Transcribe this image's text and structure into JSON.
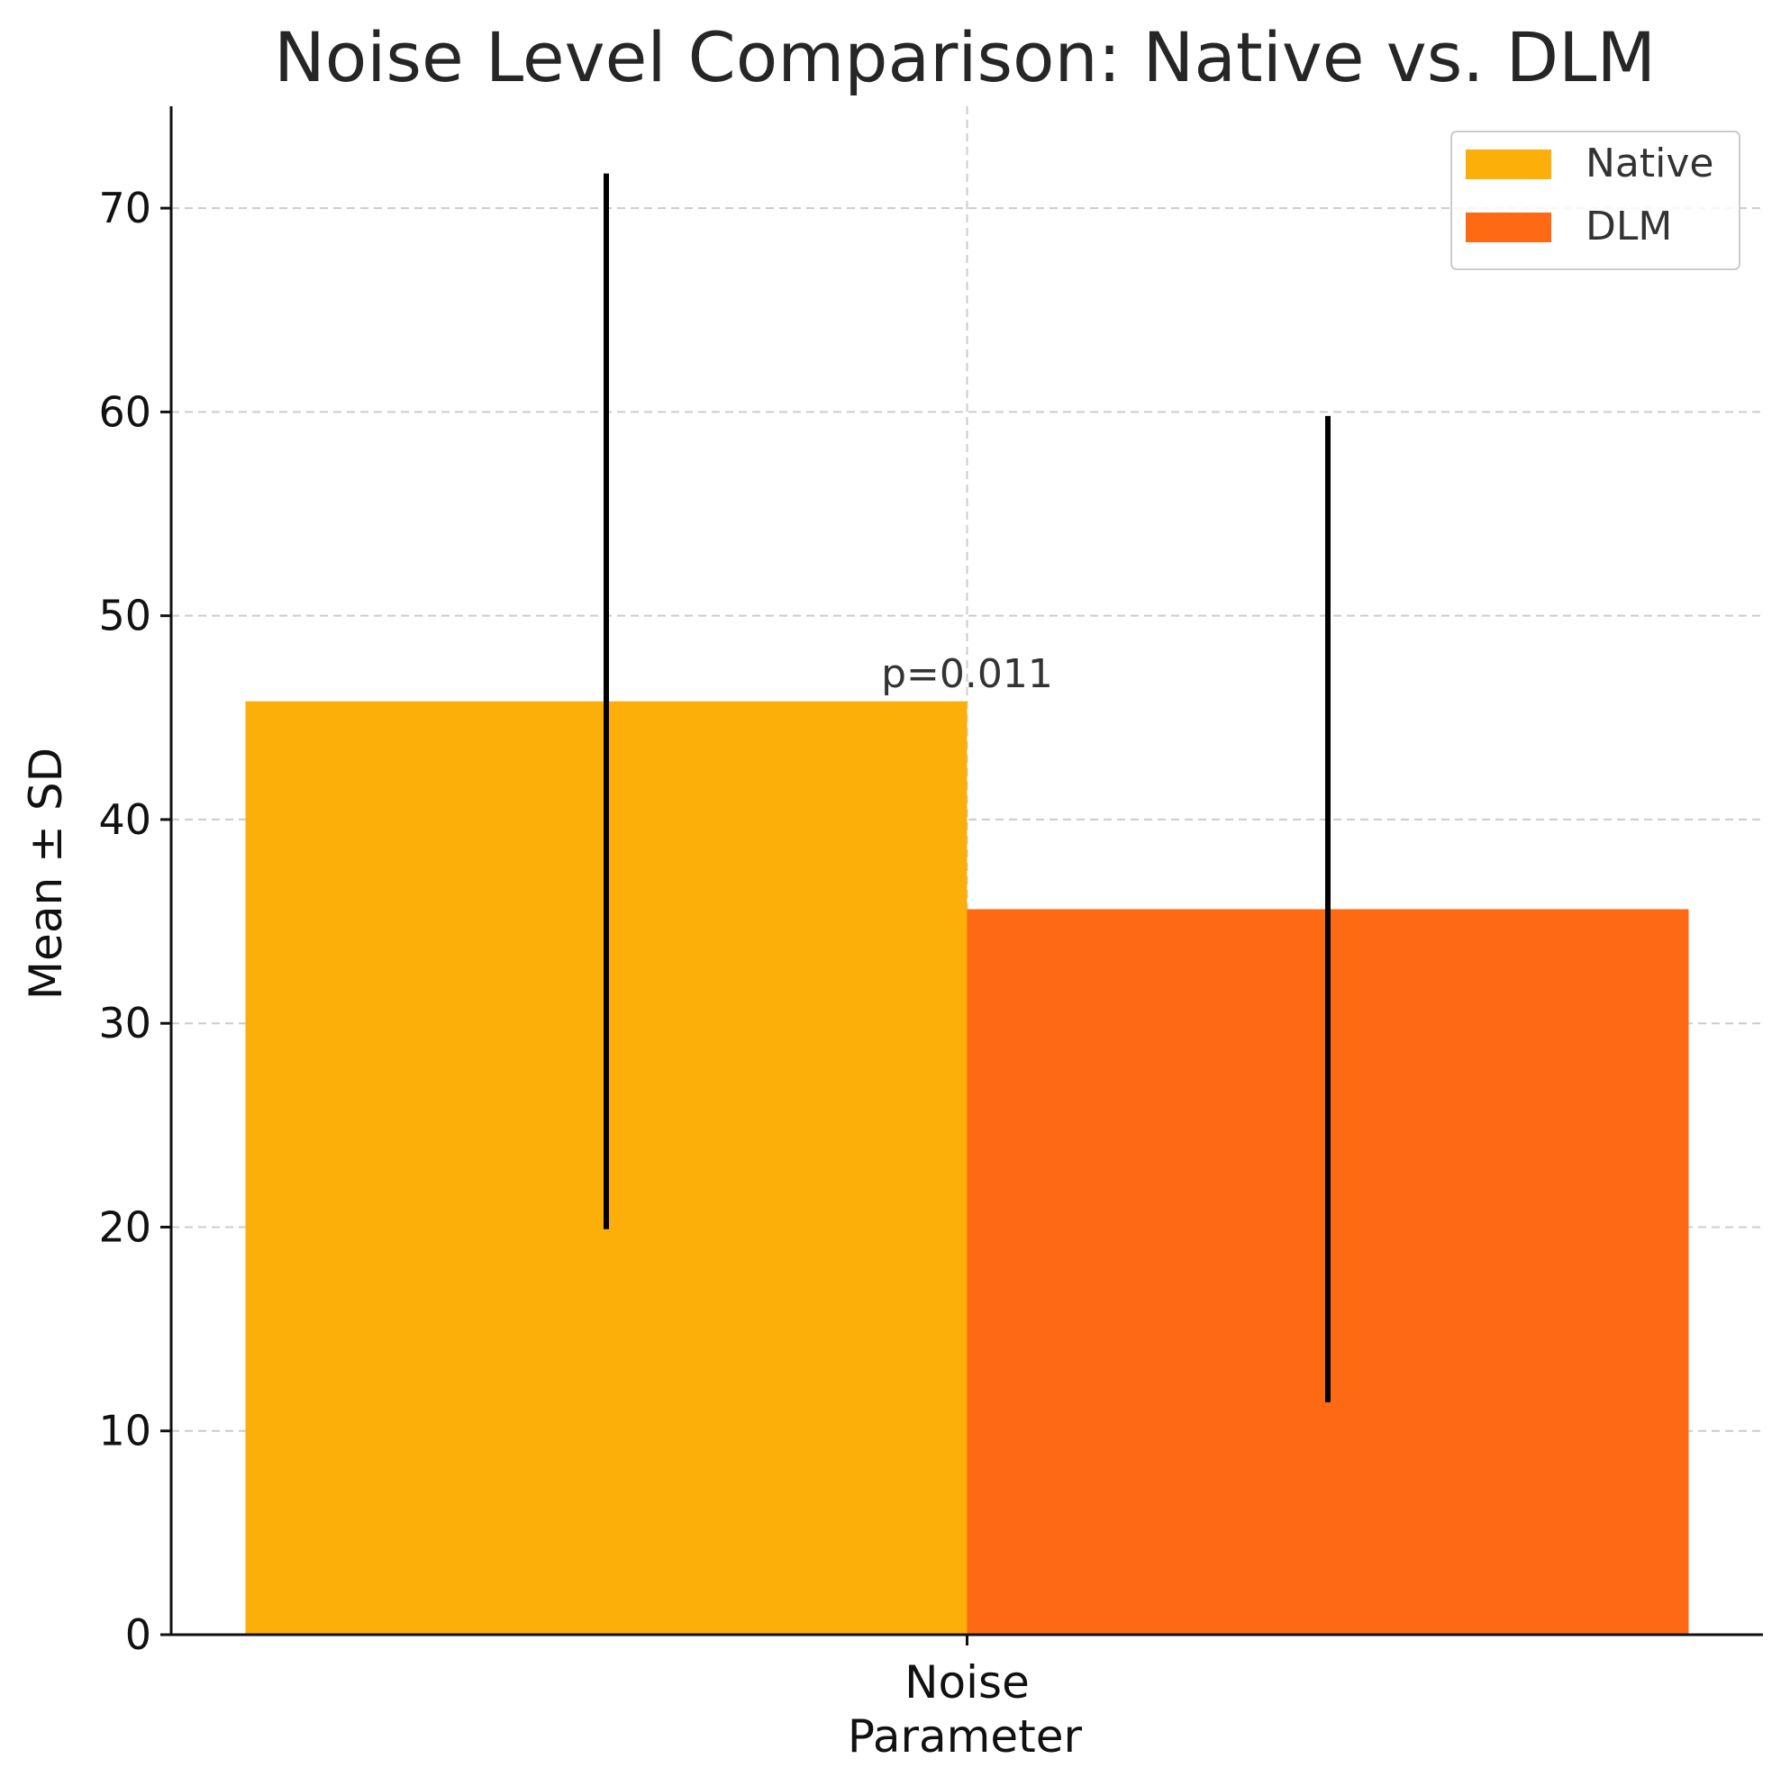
{
  "chart_data": {
    "type": "bar",
    "title": "Noise Level Comparison: Native vs. DLM",
    "xlabel": "Parameter",
    "ylabel": "Mean ± SD",
    "categories": [
      "Noise"
    ],
    "ylim": [
      0,
      75
    ],
    "yticks": [
      0,
      10,
      20,
      30,
      40,
      50,
      60,
      70
    ],
    "grid": true,
    "legend_position": "top-right",
    "series": [
      {
        "name": "Native",
        "values": [
          45.8
        ],
        "sd": [
          25.9
        ],
        "color": "#FCAF08"
      },
      {
        "name": "DLM",
        "values": [
          35.6
        ],
        "sd": [
          24.2
        ],
        "color": "#FE6A14"
      }
    ],
    "annotations": [
      {
        "text": "p=0.011",
        "category": "Noise",
        "y": 46.5
      }
    ]
  }
}
